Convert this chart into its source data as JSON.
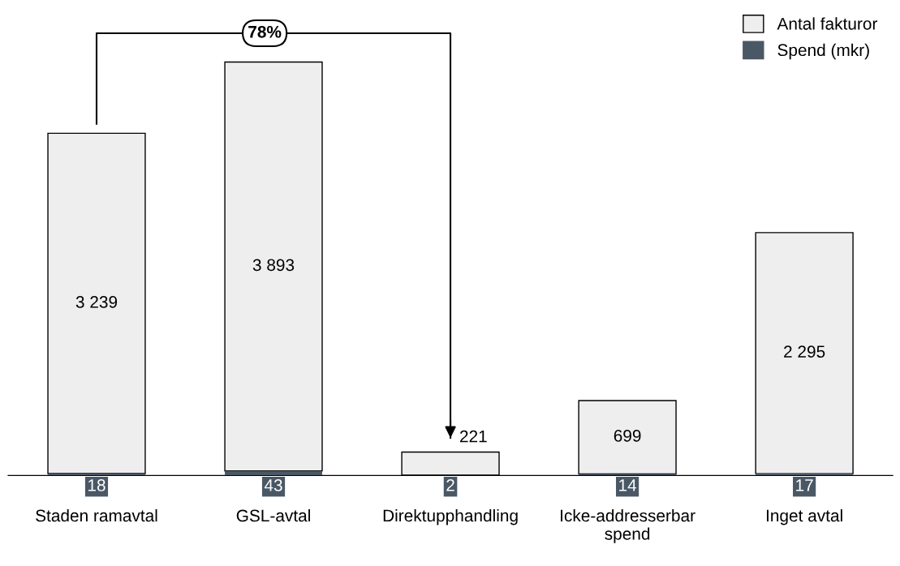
{
  "chart_data": {
    "type": "bar",
    "stacked": true,
    "categories": [
      "Staden ramavtal",
      "GSL-avtal",
      "Direktupphandling",
      "Icke-addresserbar\nspend",
      "Inget avtal"
    ],
    "series": [
      {
        "name": "Spend (mkr)",
        "color": "#4a5866",
        "values": [
          18,
          43,
          2,
          14,
          17
        ]
      },
      {
        "name": "Antal fakturor",
        "color": "#eeeeee",
        "values": [
          3239,
          3893,
          221,
          699,
          2295
        ]
      }
    ],
    "data_labels": true,
    "legend": "top right",
    "grid": false,
    "annotations": [
      "78%"
    ]
  }
}
